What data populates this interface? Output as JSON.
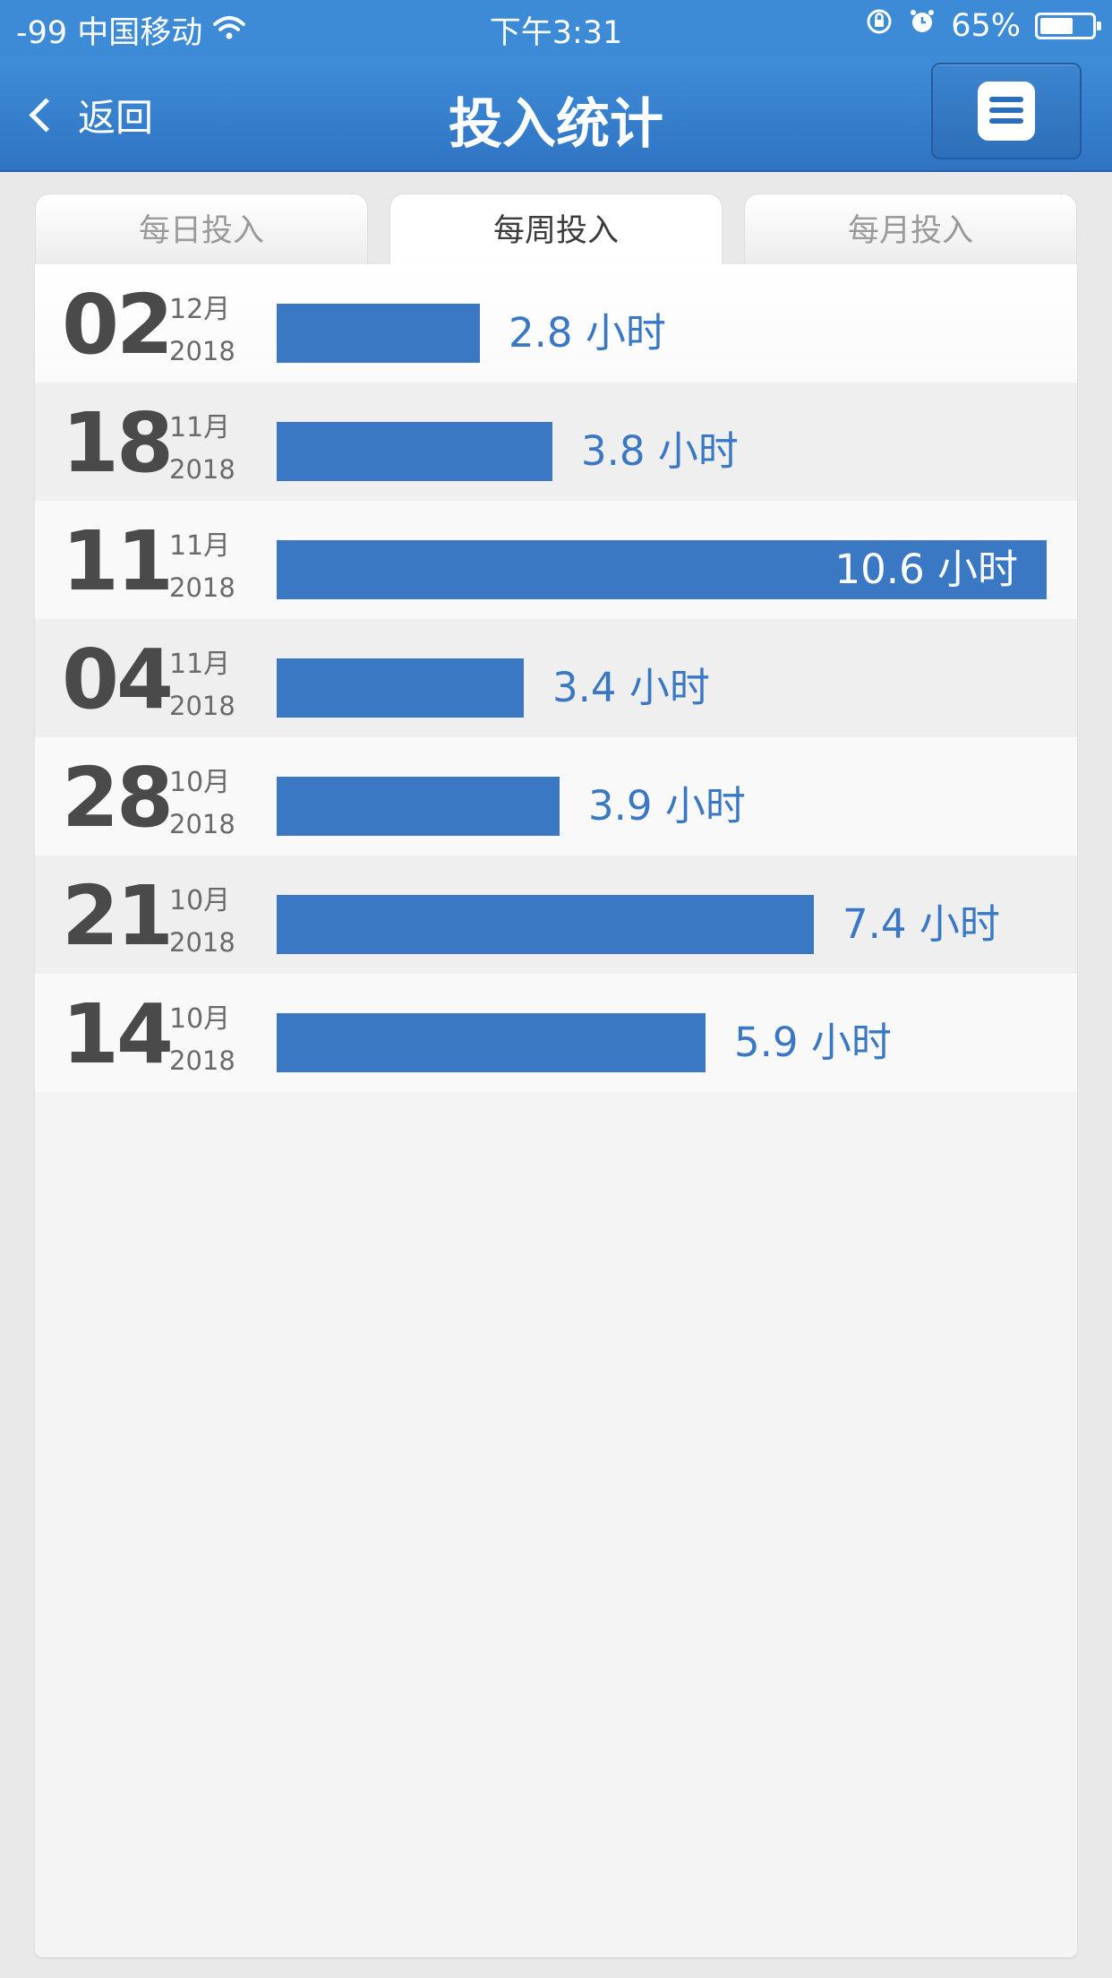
{
  "status_bar": {
    "carrier": "-99 中国移动",
    "time": "下午3:31",
    "battery_percent": "65%",
    "battery_level": 0.65
  },
  "nav": {
    "back_label": "返回",
    "title": "投入统计"
  },
  "tabs": [
    {
      "label": "每日投入",
      "active": false
    },
    {
      "label": "每周投入",
      "active": true
    },
    {
      "label": "每月投入",
      "active": false
    }
  ],
  "chart_data": {
    "type": "bar",
    "orientation": "horizontal",
    "unit": "小时",
    "max_value": 10.6,
    "rows": [
      {
        "day": "02",
        "month": "12月",
        "year": "2018",
        "value": 2.8,
        "label": "2.8 小时"
      },
      {
        "day": "18",
        "month": "11月",
        "year": "2018",
        "value": 3.8,
        "label": "3.8 小时"
      },
      {
        "day": "11",
        "month": "11月",
        "year": "2018",
        "value": 10.6,
        "label": "10.6 小时"
      },
      {
        "day": "04",
        "month": "11月",
        "year": "2018",
        "value": 3.4,
        "label": "3.4 小时"
      },
      {
        "day": "28",
        "month": "10月",
        "year": "2018",
        "value": 3.9,
        "label": "3.9 小时"
      },
      {
        "day": "21",
        "month": "10月",
        "year": "2018",
        "value": 7.4,
        "label": "7.4 小时"
      },
      {
        "day": "14",
        "month": "10月",
        "year": "2018",
        "value": 5.9,
        "label": "5.9 小时"
      }
    ]
  },
  "colors": {
    "accent": "#3a78c4",
    "nav_background": "#3d8bd6"
  }
}
